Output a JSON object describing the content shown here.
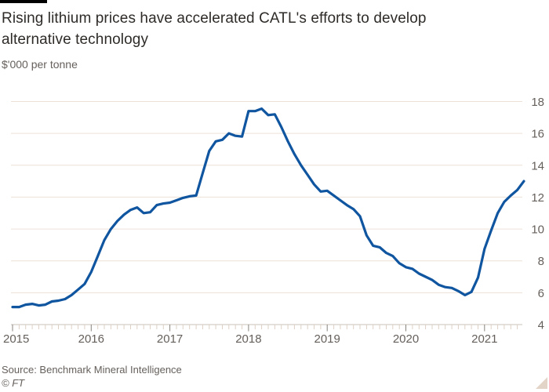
{
  "header": {
    "title": "Rising lithium prices have accelerated CATL's efforts to develop alternative technology",
    "unit_label": "$'000 per tonne"
  },
  "footer": {
    "source": "Source: Benchmark Mineral Intelligence",
    "copyright": "© FT"
  },
  "colors": {
    "line": "#10559f",
    "gridline": "#ede1d6",
    "axis_baseline": "#c9c0b7",
    "tick_minor": "#ddd0c5",
    "tick_major": "#89837d",
    "axis_label": "#66605c",
    "title_text": "#2e2b28",
    "top_bar": "#000000",
    "corner_triangle": "#e2d5c7"
  },
  "chart_data": {
    "type": "line",
    "title": "Rising lithium prices have accelerated CATL's efforts to develop alternative technology",
    "ylabel": "$'000 per tonne",
    "x_frequency": "monthly",
    "x_start": "2015-01",
    "x_end": "2021-07",
    "x_tick_labels": [
      "2015",
      "2016",
      "2017",
      "2018",
      "2019",
      "2020",
      "2021"
    ],
    "ylim": [
      4,
      18
    ],
    "yticks": [
      4,
      6,
      8,
      10,
      12,
      14,
      16,
      18
    ],
    "grid": "horizontal",
    "y_axis_side": "right",
    "legend": "none",
    "series": [
      {
        "name": "Lithium carbonate price",
        "values": [
          5.1,
          5.1,
          5.25,
          5.3,
          5.2,
          5.25,
          5.45,
          5.5,
          5.6,
          5.85,
          6.2,
          6.55,
          7.3,
          8.3,
          9.3,
          10.0,
          10.5,
          10.9,
          11.2,
          11.35,
          11.0,
          11.05,
          11.5,
          11.6,
          11.65,
          11.8,
          11.95,
          12.05,
          12.1,
          13.5,
          14.9,
          15.5,
          15.6,
          16.0,
          15.85,
          15.8,
          17.4,
          17.4,
          17.55,
          17.15,
          17.2,
          16.4,
          15.5,
          14.7,
          14.0,
          13.4,
          12.8,
          12.35,
          12.4,
          12.1,
          11.8,
          11.5,
          11.25,
          10.8,
          9.6,
          8.95,
          8.85,
          8.5,
          8.3,
          7.85,
          7.6,
          7.5,
          7.2,
          7.0,
          6.8,
          6.5,
          6.35,
          6.3,
          6.1,
          5.85,
          6.05,
          6.95,
          8.75,
          9.9,
          11.0,
          11.7,
          12.1,
          12.45,
          13.0
        ]
      }
    ]
  }
}
